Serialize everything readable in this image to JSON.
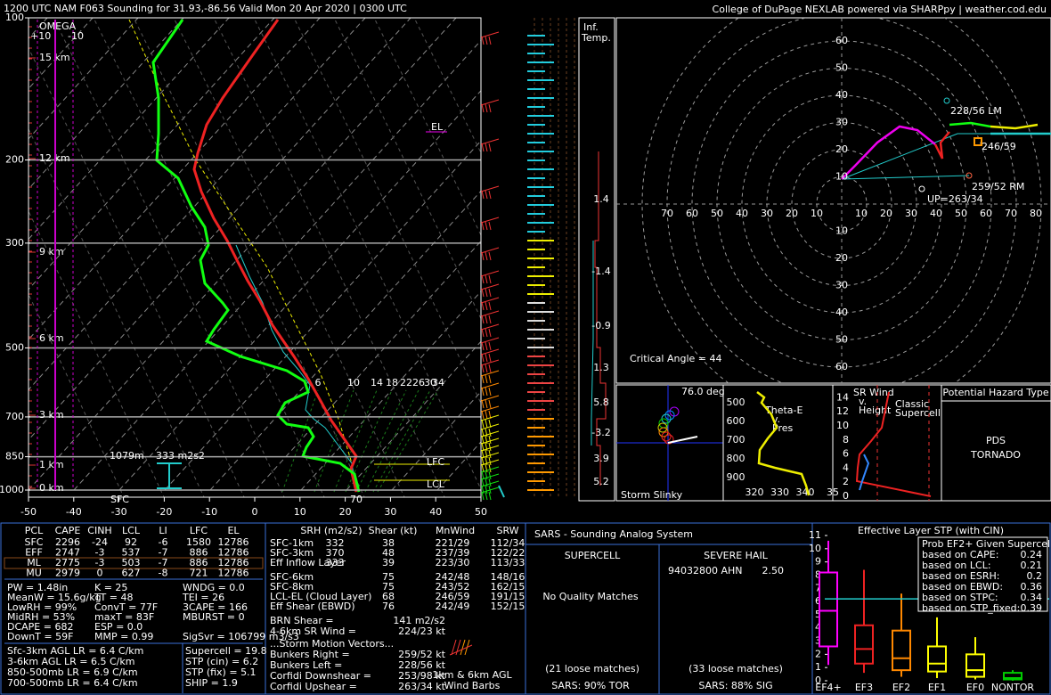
{
  "header": {
    "title": "1200 UTC NAM F063 Sounding for 31.93,-86.56 Valid  Mon 20 Apr 2020 | 0300 UTC",
    "credit": "College of DuPage NEXLAB powered via SHARPpy | weather.cod.edu"
  },
  "skewt": {
    "ylim": [
      100,
      1000
    ],
    "yticks": [
      100,
      200,
      300,
      500,
      700,
      850,
      1000
    ],
    "xlim": [
      -50,
      50
    ],
    "xticks": [
      -50,
      -40,
      -30,
      -20,
      -10,
      0,
      10,
      20,
      30,
      40,
      50
    ],
    "heights": [
      "15 km",
      "12 km",
      "9 km",
      "6 km",
      "3 km",
      "1 km",
      "0 km"
    ],
    "omega_title": "OMEGA",
    "omega_ticks": [
      "+10",
      "-10"
    ],
    "el": "EL",
    "lfc": "LFC",
    "lcl": "LCL",
    "inflow_depth": "1079m",
    "inflow_srh": "333 m2s2",
    "inflow_base": "SFC",
    "dgz": "70",
    "mixing_ratio_labels": [
      "6",
      "10",
      "14",
      "18",
      "22",
      "26",
      "30",
      "34"
    ]
  },
  "inflow_temp": {
    "title": [
      "Inf.",
      "Temp."
    ],
    "labels": [
      "1.4",
      "-1.4",
      "-0.9",
      "1.3",
      "5.8",
      "-3.2",
      "3.9",
      "5.2"
    ]
  },
  "hodograph": {
    "rings_up": [
      10,
      20,
      30,
      40,
      50,
      60
    ],
    "rings_down": [
      10,
      20,
      30,
      40,
      50,
      60
    ],
    "rings_left": [
      10,
      20,
      30,
      40,
      50,
      60,
      70
    ],
    "rings_right": [
      10,
      20,
      30,
      40,
      50,
      60,
      70,
      80
    ],
    "left_mover": "228/56 LM",
    "mean_wind": "246/59",
    "right_mover": "259/52 RM",
    "upshear": "UP=263/34",
    "critical_angle": "Critical Angle = 44"
  },
  "slinky": {
    "angle": "76.0 deg",
    "title": "Storm Slinky"
  },
  "thetae": {
    "yticks": [
      500,
      600,
      700,
      800,
      900
    ],
    "xticks": [
      320,
      330,
      340
    ],
    "x_clipped": "35",
    "label": [
      "Theta-E",
      "v.",
      "Pres"
    ]
  },
  "srwind": {
    "yticks": [
      14,
      12,
      10,
      8,
      6,
      4,
      2,
      0
    ],
    "label": [
      "SR Wind",
      "v.",
      "Height"
    ],
    "type_label": [
      "Classic",
      "Supercell"
    ]
  },
  "hazard": {
    "title": "Potential Hazard Type",
    "value": [
      "PDS",
      "TORNADO"
    ]
  },
  "parcels": {
    "header": [
      "PCL",
      "CAPE",
      "CINH",
      "LCL",
      "LI",
      "LFC",
      "EL"
    ],
    "rows": [
      [
        "SFC",
        2296,
        -24,
        92,
        -6,
        1580,
        12786
      ],
      [
        "EFF",
        2747,
        -3,
        537,
        -7,
        886,
        12786
      ],
      [
        "ML",
        2775,
        -3,
        503,
        -7,
        886,
        12786
      ],
      [
        "MU",
        2979,
        0,
        627,
        -8,
        721,
        12786
      ]
    ]
  },
  "stats": {
    "col1": [
      "PW = 1.48in",
      "MeanW = 15.6g/kg",
      "LowRH = 99%",
      "MidRH = 53%",
      "DCAPE = 682",
      "DownT = 59F"
    ],
    "col2": [
      "K = 25",
      "TT = 48",
      "ConvT = 77F",
      "maxT = 83F",
      "ESP = 0.0",
      "MMP = 0.99"
    ],
    "col3": [
      "WNDG = 0.0",
      "TEI = 26",
      "3CAPE = 166",
      "MBURST = 0",
      "SigSvr = 106799 m3/s3"
    ]
  },
  "lapse_rates": [
    "Sfc-3km AGL LR = 6.4 C/km",
    "3-6km AGL LR = 6.5 C/km",
    "850-500mb LR = 6.9 C/km",
    "700-500mb LR = 6.4 C/km"
  ],
  "indices": [
    "Supercell = 19.8",
    "STP (cin) = 6.2",
    "STP (fix) = 5.1",
    "SHIP = 1.9"
  ],
  "kinematics": {
    "header": [
      "SRH (m2/s2)",
      "Shear (kt)",
      "MnWind",
      "SRW"
    ],
    "rows": [
      {
        "label": "SFC-1km",
        "srh": 332,
        "shear": 38,
        "mnwind": "221/29",
        "srw": "112/34"
      },
      {
        "label": "SFC-3km",
        "srh": 370,
        "shear": 48,
        "mnwind": "237/39",
        "srw": "122/22"
      },
      {
        "label": "Eff Inflow Layer",
        "srh": 333,
        "shear": 39,
        "mnwind": "223/30",
        "srw": "113/33"
      },
      {
        "label": "SFC-6km",
        "shear": 75,
        "mnwind": "242/48",
        "srw": "148/16"
      },
      {
        "label": "SFC-8km",
        "shear": 75,
        "mnwind": "243/52",
        "srw": "162/15"
      },
      {
        "label": "LCL-EL (Cloud Layer)",
        "shear": 68,
        "mnwind": "246/59",
        "srw": "191/15"
      },
      {
        "label": "Eff Shear (EBWD)",
        "shear": 76,
        "mnwind": "242/49",
        "srw": "152/15"
      }
    ],
    "brn": [
      "BRN Shear =",
      "141 m2/s2"
    ],
    "sr_wind_46": [
      "4-6km SR Wind =",
      "224/23 kt"
    ],
    "storm_motion_title": "...Storm Motion Vectors...",
    "storm_motion": [
      [
        "Bunkers Right =",
        "259/52 kt"
      ],
      [
        "Bunkers Left =",
        "228/56 kt"
      ],
      [
        "Corfidi Downshear =",
        "253/98 kt"
      ],
      [
        "Corfidi Upshear =",
        "263/34 kt"
      ]
    ],
    "barb_label": [
      "1km & 6km AGL",
      "Wind Barbs"
    ]
  },
  "sars": {
    "title": "SARS - Sounding Analog System",
    "supercell": {
      "title": "SUPERCELL",
      "matches": "No Quality Matches",
      "loose": "(21 loose matches)",
      "summary": "SARS: 90% TOR"
    },
    "hail": {
      "title": "SEVERE HAIL",
      "match": "94032800 AHN",
      "size": "2.50",
      "loose": "(33 loose matches)",
      "summary": "SARS: 88% SIG"
    }
  },
  "stp": {
    "title": "Effective Layer STP (with CIN)",
    "ylim": [
      0,
      11
    ],
    "yticks": [
      0,
      1,
      2,
      3,
      4,
      5,
      6,
      7,
      8,
      9,
      10,
      11
    ],
    "categories": [
      "EF4+",
      "EF3",
      "EF2",
      "EF1",
      "EF0",
      "NONTOR"
    ],
    "colors": [
      "#ff00ff",
      "#ee2222",
      "#ff8800",
      "#ffff00",
      "#ffff00",
      "#00cc00"
    ],
    "boxes": [
      [
        1.2,
        2.6,
        5.3,
        8.2,
        10.6
      ],
      [
        0.6,
        1.3,
        2.4,
        4.2,
        8.4
      ],
      [
        0.3,
        0.8,
        1.7,
        3.8,
        6.6
      ],
      [
        0.2,
        0.7,
        1.3,
        2.6,
        4.8
      ],
      [
        0.1,
        0.3,
        0.8,
        2.0,
        3.3
      ],
      [
        0,
        0.1,
        0.2,
        0.6,
        0.8
      ]
    ],
    "current": 6.2,
    "prob_title": "Prob EF2+ Given Supercell",
    "prob": [
      [
        "based on CAPE:",
        0.24
      ],
      [
        "based on LCL:",
        0.21
      ],
      [
        "based on ESRH:",
        0.2
      ],
      [
        "based on EBWD:",
        0.36
      ],
      [
        "based on STPC:",
        0.34
      ],
      [
        "based on STP_fixed:",
        0.39
      ]
    ]
  }
}
